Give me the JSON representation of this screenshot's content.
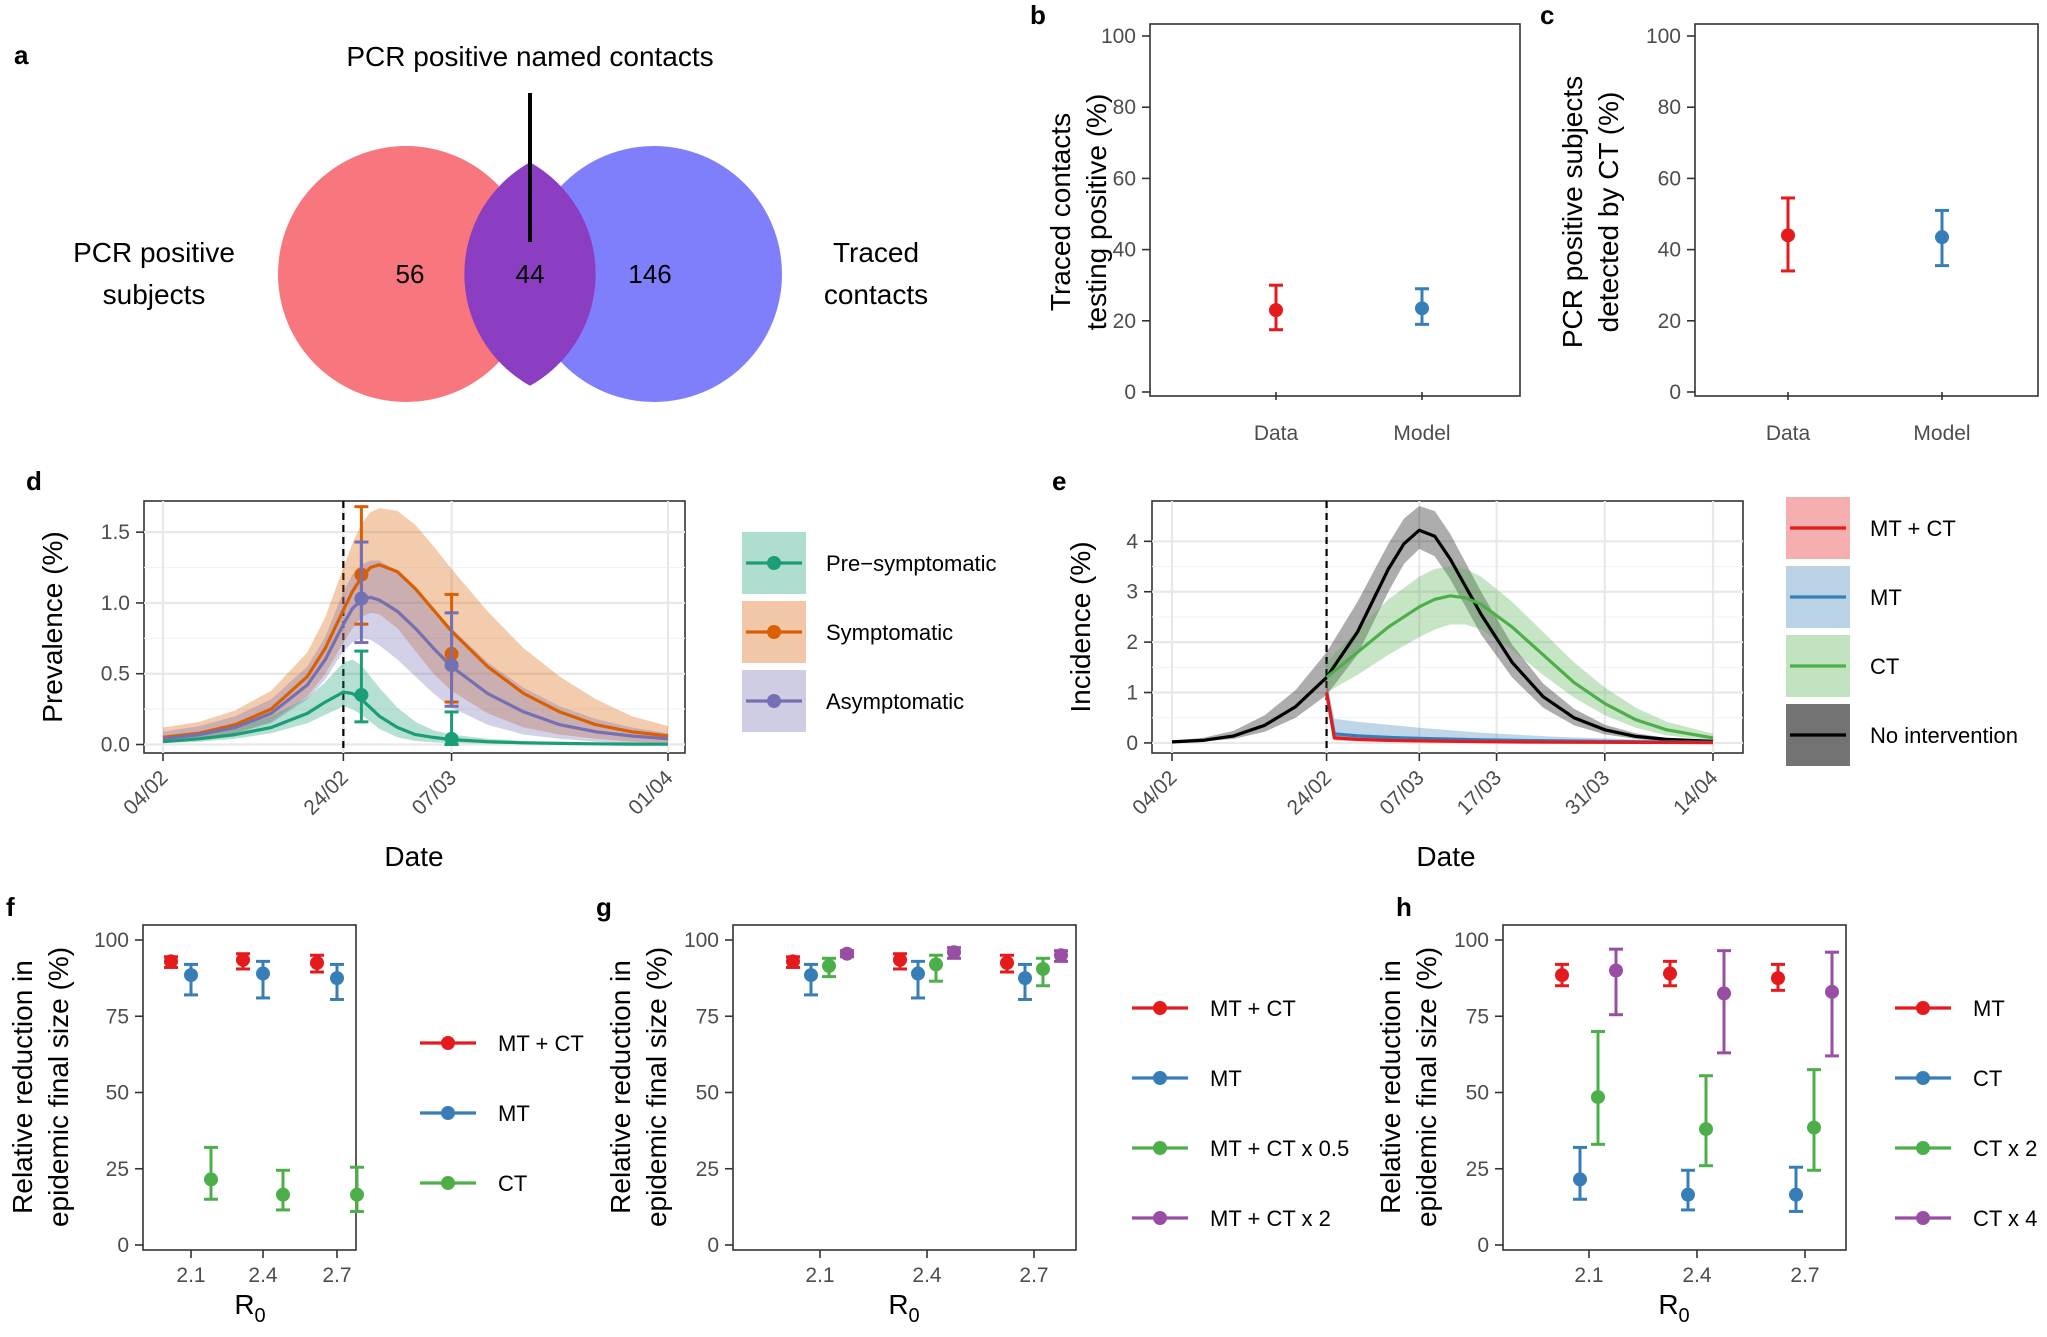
{
  "colors": {
    "red": "#e41a1c",
    "blue": "#377eb8",
    "green": "#4daf4a",
    "purple": "#984ea3",
    "teal": "#1b9e77",
    "orange": "#d95f02",
    "lavender": "#7570b3",
    "black": "#000000",
    "venn_left": "#f8767d",
    "venn_right": "#7f7ffc",
    "venn_overlap": "#8b3ec2"
  },
  "chart_data": [
    {
      "panel": "a",
      "type": "venn",
      "title": "PCR positive named contacts",
      "left_label": [
        "PCR positive",
        "subjects"
      ],
      "right_label": [
        "Traced",
        "contacts"
      ],
      "left_only": "56",
      "overlap": "44",
      "right_only": "146"
    },
    {
      "panel": "b",
      "type": "errorbar",
      "ylabel": [
        "Traced contacts",
        "testing positive (%)"
      ],
      "categories": [
        "Data",
        "Model"
      ],
      "points": [
        {
          "category": "Data",
          "value": 23,
          "low": 17.5,
          "high": 30,
          "color": "red"
        },
        {
          "category": "Model",
          "value": 23.5,
          "low": 19,
          "high": 29,
          "color": "blue"
        }
      ],
      "ylim": [
        0,
        100
      ],
      "yticks": [
        0,
        20,
        40,
        60,
        80,
        100
      ]
    },
    {
      "panel": "c",
      "type": "errorbar",
      "ylabel": [
        "PCR positive subjects",
        "detected by CT (%)"
      ],
      "categories": [
        "Data",
        "Model"
      ],
      "points": [
        {
          "category": "Data",
          "value": 44,
          "low": 34,
          "high": 54.5,
          "color": "red"
        },
        {
          "category": "Model",
          "value": 43.5,
          "low": 35.5,
          "high": 51,
          "color": "blue"
        }
      ],
      "ylim": [
        0,
        100
      ],
      "yticks": [
        0,
        20,
        40,
        60,
        80,
        100
      ]
    },
    {
      "panel": "d",
      "type": "line",
      "xlabel": "Date",
      "ylabel": "Prevalence (%)",
      "x_range_days": [
        0,
        56
      ],
      "ylim": [
        -0.06,
        1.72
      ],
      "yticks": [
        0.0,
        0.5,
        1.0,
        1.5
      ],
      "ytick_labels": [
        "0.0",
        "0.5",
        "1.0",
        "1.5"
      ],
      "xticks": [
        {
          "day": 0,
          "label": "04/02"
        },
        {
          "day": 20,
          "label": "24/02"
        },
        {
          "day": 32,
          "label": "07/03"
        },
        {
          "day": 56,
          "label": "01/04"
        }
      ],
      "vline_day": 20,
      "series": [
        {
          "name": "Symptomatic",
          "color": "orange",
          "x": [
            0,
            4,
            8,
            12,
            16,
            18,
            20,
            21,
            22,
            23,
            24,
            26,
            28,
            30,
            32,
            36,
            40,
            44,
            48,
            52,
            56
          ],
          "mean": [
            0.05,
            0.08,
            0.14,
            0.25,
            0.48,
            0.68,
            0.95,
            1.08,
            1.18,
            1.25,
            1.27,
            1.22,
            1.1,
            0.95,
            0.8,
            0.55,
            0.36,
            0.23,
            0.14,
            0.09,
            0.06
          ],
          "lower": [
            0.02,
            0.04,
            0.08,
            0.16,
            0.34,
            0.5,
            0.72,
            0.82,
            0.9,
            0.93,
            0.92,
            0.82,
            0.66,
            0.5,
            0.38,
            0.22,
            0.12,
            0.07,
            0.04,
            0.02,
            0.01
          ],
          "upper": [
            0.12,
            0.16,
            0.24,
            0.38,
            0.65,
            0.9,
            1.25,
            1.42,
            1.56,
            1.64,
            1.67,
            1.65,
            1.55,
            1.4,
            1.24,
            0.94,
            0.68,
            0.48,
            0.32,
            0.2,
            0.13
          ]
        },
        {
          "name": "Asymptomatic",
          "color": "lavender",
          "x": [
            0,
            4,
            8,
            12,
            16,
            18,
            20,
            21,
            22,
            23,
            24,
            26,
            28,
            30,
            32,
            36,
            40,
            44,
            48,
            52,
            56
          ],
          "mean": [
            0.04,
            0.07,
            0.12,
            0.22,
            0.42,
            0.6,
            0.85,
            0.96,
            1.02,
            1.04,
            1.02,
            0.94,
            0.82,
            0.68,
            0.55,
            0.36,
            0.23,
            0.14,
            0.09,
            0.06,
            0.04
          ],
          "lower": [
            0.02,
            0.04,
            0.08,
            0.15,
            0.32,
            0.46,
            0.66,
            0.72,
            0.75,
            0.74,
            0.7,
            0.6,
            0.48,
            0.36,
            0.26,
            0.14,
            0.07,
            0.04,
            0.02,
            0.01,
            0.005
          ],
          "upper": [
            0.09,
            0.13,
            0.2,
            0.32,
            0.55,
            0.76,
            1.08,
            1.2,
            1.27,
            1.3,
            1.3,
            1.22,
            1.1,
            0.96,
            0.82,
            0.58,
            0.4,
            0.27,
            0.18,
            0.12,
            0.08
          ]
        },
        {
          "name": "Pre−symptomatic",
          "color": "teal",
          "x": [
            0,
            4,
            8,
            12,
            16,
            18,
            20,
            21,
            22,
            23,
            24,
            26,
            28,
            30,
            32,
            36,
            40,
            44,
            48,
            52,
            56
          ],
          "mean": [
            0.02,
            0.04,
            0.07,
            0.12,
            0.22,
            0.3,
            0.37,
            0.36,
            0.32,
            0.26,
            0.2,
            0.12,
            0.07,
            0.05,
            0.035,
            0.02,
            0.012,
            0.008,
            0.005,
            0.003,
            0.002
          ],
          "lower": [
            0.01,
            0.02,
            0.04,
            0.08,
            0.15,
            0.21,
            0.27,
            0.25,
            0.21,
            0.16,
            0.11,
            0.05,
            0.025,
            0.015,
            0.01,
            0.005,
            0.003,
            0.002,
            0.001,
            0.001,
            0.0
          ],
          "upper": [
            0.04,
            0.07,
            0.12,
            0.2,
            0.33,
            0.44,
            0.58,
            0.6,
            0.56,
            0.48,
            0.4,
            0.26,
            0.16,
            0.1,
            0.07,
            0.04,
            0.025,
            0.015,
            0.01,
            0.006,
            0.004
          ]
        }
      ],
      "points": [
        {
          "series": "Symptomatic",
          "day": 22,
          "value": 1.2,
          "low": 0.85,
          "high": 1.68,
          "color": "orange"
        },
        {
          "series": "Symptomatic",
          "day": 32,
          "value": 0.64,
          "low": 0.3,
          "high": 1.06,
          "color": "orange"
        },
        {
          "series": "Asymptomatic",
          "day": 22,
          "value": 1.03,
          "low": 0.72,
          "high": 1.43,
          "color": "lavender"
        },
        {
          "series": "Asymptomatic",
          "day": 32,
          "value": 0.56,
          "low": 0.27,
          "high": 0.93,
          "color": "lavender"
        },
        {
          "series": "Pre−symptomatic",
          "day": 22,
          "value": 0.35,
          "low": 0.16,
          "high": 0.66,
          "color": "teal"
        },
        {
          "series": "Pre−symptomatic",
          "day": 32,
          "value": 0.04,
          "low": 0.0,
          "high": 0.23,
          "color": "teal"
        }
      ],
      "legend": [
        "Pre−symptomatic",
        "Symptomatic",
        "Asymptomatic"
      ]
    },
    {
      "panel": "e",
      "type": "line",
      "xlabel": "Date",
      "ylabel": "Incidence (%)",
      "x_range_days": [
        0,
        70
      ],
      "ylim": [
        -0.2,
        4.8
      ],
      "yticks": [
        0,
        1,
        2,
        3,
        4
      ],
      "ytick_labels": [
        "0",
        "1",
        "2",
        "3",
        "4"
      ],
      "xticks": [
        {
          "day": 0,
          "label": "04/02"
        },
        {
          "day": 20,
          "label": "24/02"
        },
        {
          "day": 32,
          "label": "07/03"
        },
        {
          "day": 42,
          "label": "17/03"
        },
        {
          "day": 56,
          "label": "31/03"
        },
        {
          "day": 70,
          "label": "14/04"
        }
      ],
      "vline_day": 20,
      "series": [
        {
          "name": "No intervention",
          "color": "black",
          "x": [
            0,
            4,
            8,
            12,
            16,
            20,
            24,
            28,
            30,
            32,
            34,
            36,
            40,
            44,
            48,
            52,
            56,
            60,
            64,
            70
          ],
          "mean": [
            0.02,
            0.05,
            0.14,
            0.35,
            0.72,
            1.3,
            2.2,
            3.45,
            3.95,
            4.22,
            4.1,
            3.65,
            2.55,
            1.6,
            0.92,
            0.5,
            0.26,
            0.13,
            0.07,
            0.03
          ],
          "lower": [
            0.01,
            0.03,
            0.08,
            0.22,
            0.5,
            0.95,
            1.75,
            3.0,
            3.55,
            3.85,
            3.7,
            3.25,
            2.15,
            1.3,
            0.7,
            0.35,
            0.17,
            0.08,
            0.04,
            0.01
          ],
          "upper": [
            0.05,
            0.1,
            0.24,
            0.55,
            1.05,
            1.8,
            2.8,
            3.95,
            4.45,
            4.7,
            4.6,
            4.15,
            3.0,
            1.95,
            1.18,
            0.68,
            0.36,
            0.19,
            0.1,
            0.05
          ]
        },
        {
          "name": "CT",
          "color": "green",
          "x": [
            20,
            24,
            28,
            32,
            34,
            36,
            38,
            40,
            44,
            48,
            52,
            56,
            60,
            64,
            70
          ],
          "mean": [
            1.3,
            1.8,
            2.3,
            2.7,
            2.85,
            2.92,
            2.88,
            2.75,
            2.3,
            1.75,
            1.2,
            0.78,
            0.46,
            0.26,
            0.1
          ],
          "lower": [
            1.0,
            1.35,
            1.75,
            2.1,
            2.25,
            2.35,
            2.35,
            2.25,
            1.85,
            1.35,
            0.9,
            0.55,
            0.3,
            0.15,
            0.05
          ],
          "upper": [
            1.6,
            2.25,
            2.85,
            3.3,
            3.45,
            3.5,
            3.45,
            3.3,
            2.8,
            2.2,
            1.6,
            1.1,
            0.7,
            0.42,
            0.18
          ]
        },
        {
          "name": "MT",
          "color": "blue",
          "x": [
            20,
            21,
            24,
            28,
            32,
            40,
            50,
            60,
            70
          ],
          "mean": [
            1.0,
            0.18,
            0.14,
            0.11,
            0.09,
            0.06,
            0.04,
            0.025,
            0.015
          ],
          "lower": [
            0.8,
            0.08,
            0.05,
            0.03,
            0.02,
            0.01,
            0.005,
            0.0,
            0.0
          ],
          "upper": [
            1.25,
            0.48,
            0.42,
            0.36,
            0.3,
            0.2,
            0.12,
            0.07,
            0.04
          ]
        },
        {
          "name": "MT + CT",
          "color": "red",
          "x": [
            20,
            21,
            24,
            28,
            32,
            40,
            50,
            60,
            70
          ],
          "mean": [
            1.0,
            0.1,
            0.07,
            0.05,
            0.04,
            0.025,
            0.015,
            0.01,
            0.005
          ],
          "lower": [
            0.8,
            0.05,
            0.03,
            0.02,
            0.01,
            0.005,
            0.0,
            0.0,
            0.0
          ],
          "upper": [
            1.25,
            0.2,
            0.15,
            0.12,
            0.1,
            0.07,
            0.04,
            0.025,
            0.015
          ]
        }
      ],
      "legend": [
        "MT + CT",
        "MT",
        "CT",
        "No intervention"
      ]
    },
    {
      "panel": "f",
      "type": "errorbar",
      "xlabel": "R",
      "xlabel_sub": "0",
      "ylabel": [
        "Relative reduction in",
        "epidemic final size (%)"
      ],
      "categories": [
        "2.1",
        "2.4",
        "2.7"
      ],
      "ylim": [
        0,
        100
      ],
      "yticks": [
        0,
        25,
        50,
        75,
        100
      ],
      "series": [
        {
          "name": "MT + CT",
          "color": "red",
          "values": [
            93,
            93.5,
            92.5
          ],
          "low": [
            91,
            90.5,
            89.5
          ],
          "high": [
            94.5,
            95.5,
            95
          ]
        },
        {
          "name": "MT",
          "color": "blue",
          "values": [
            88.5,
            89,
            87.5
          ],
          "low": [
            82,
            81,
            80.5
          ],
          "high": [
            92,
            93,
            92
          ]
        },
        {
          "name": "CT",
          "color": "green",
          "values": [
            21.5,
            16.5,
            16.5
          ],
          "low": [
            15,
            11.5,
            11
          ],
          "high": [
            32,
            24.5,
            25.5
          ]
        }
      ]
    },
    {
      "panel": "g",
      "type": "errorbar",
      "xlabel": "R",
      "xlabel_sub": "0",
      "ylabel": [
        "Relative reduction in",
        "epidemic final size (%)"
      ],
      "categories": [
        "2.1",
        "2.4",
        "2.7"
      ],
      "ylim": [
        0,
        100
      ],
      "yticks": [
        0,
        25,
        50,
        75,
        100
      ],
      "series": [
        {
          "name": "MT + CT",
          "color": "red",
          "values": [
            93,
            93.5,
            92.5
          ],
          "low": [
            91,
            90.5,
            89.5
          ],
          "high": [
            94.5,
            95.5,
            95
          ]
        },
        {
          "name": "MT",
          "color": "blue",
          "values": [
            88.5,
            89,
            87.5
          ],
          "low": [
            82,
            81,
            80.5
          ],
          "high": [
            92,
            93,
            92
          ]
        },
        {
          "name": "MT + CT x 0.5",
          "color": "green",
          "values": [
            91.5,
            92,
            90.5
          ],
          "low": [
            88,
            86.5,
            85
          ],
          "high": [
            94,
            95,
            94
          ]
        },
        {
          "name": "MT + CT x 2",
          "color": "purple",
          "values": [
            95.5,
            96,
            95
          ],
          "low": [
            94.5,
            94,
            93
          ],
          "high": [
            96.5,
            97.5,
            96.5
          ]
        }
      ]
    },
    {
      "panel": "h",
      "type": "errorbar",
      "xlabel": "R",
      "xlabel_sub": "0",
      "ylabel": [
        "Relative reduction in",
        "epidemic final size (%)"
      ],
      "categories": [
        "2.1",
        "2.4",
        "2.7"
      ],
      "ylim": [
        0,
        100
      ],
      "yticks": [
        0,
        25,
        50,
        75,
        100
      ],
      "series": [
        {
          "name": "MT",
          "color": "red",
          "values": [
            88.5,
            89,
            87.5
          ],
          "low": [
            85,
            85,
            83.5
          ],
          "high": [
            92,
            93,
            92
          ]
        },
        {
          "name": "CT",
          "color": "blue",
          "values": [
            21.5,
            16.5,
            16.5
          ],
          "low": [
            15,
            11.5,
            11
          ],
          "high": [
            32,
            24.5,
            25.5
          ]
        },
        {
          "name": "CT x 2",
          "color": "green",
          "values": [
            48.5,
            38,
            38.5
          ],
          "low": [
            33,
            26,
            24.5
          ],
          "high": [
            70,
            55.5,
            57.5
          ]
        },
        {
          "name": "CT x 4",
          "color": "purple",
          "values": [
            90,
            82.5,
            83
          ],
          "low": [
            75.5,
            63,
            62
          ],
          "high": [
            97,
            96.5,
            96
          ]
        }
      ]
    }
  ]
}
